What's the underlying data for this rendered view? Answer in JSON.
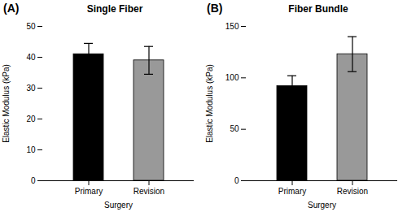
{
  "chart_data": [
    {
      "type": "bar",
      "title": "Single Fiber",
      "annotation": "(A)",
      "categories": [
        "Primary",
        "Revision"
      ],
      "values": [
        41.0,
        39.0
      ],
      "errors": [
        3.5,
        4.5
      ],
      "colors": [
        "#000000",
        "#999999"
      ],
      "xlabel": "Surgery",
      "ylabel": "Elastic Modulus (kPa)",
      "ylim": [
        0,
        50
      ],
      "yticks": [
        0,
        10,
        20,
        30,
        40,
        50
      ]
    },
    {
      "type": "bar",
      "title": "Fiber Bundle",
      "annotation": "(B)",
      "categories": [
        "Primary",
        "Revision"
      ],
      "values": [
        92.0,
        123.0
      ],
      "errors": [
        10.0,
        17.0
      ],
      "colors": [
        "#000000",
        "#999999"
      ],
      "xlabel": "Surgery",
      "ylabel": "Elastic Modulus (kPa)",
      "ylim": [
        0,
        150
      ],
      "yticks": [
        0,
        50,
        100,
        150
      ]
    }
  ]
}
